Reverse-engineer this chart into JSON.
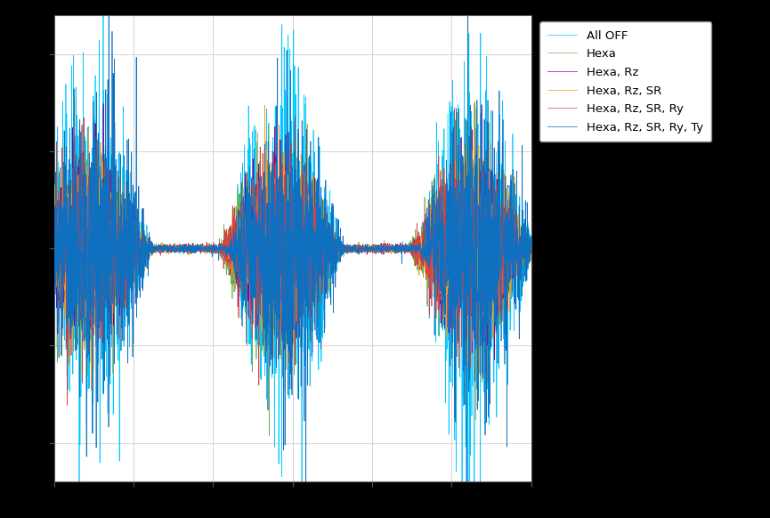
{
  "legend_labels": [
    "Hexa, Rz, SR, Ry, Ty",
    "Hexa, Rz, SR, Ry",
    "Hexa, Rz, SR",
    "Hexa, Rz",
    "Hexa",
    "All OFF"
  ],
  "colors": [
    "#1070c0",
    "#d94040",
    "#e8a020",
    "#8B008B",
    "#6ab04c",
    "#00c8ff"
  ],
  "n_points": 3000,
  "seed": 42,
  "background_color": "#ffffff",
  "figsize": [
    8.65,
    5.82
  ],
  "dpi": 100
}
